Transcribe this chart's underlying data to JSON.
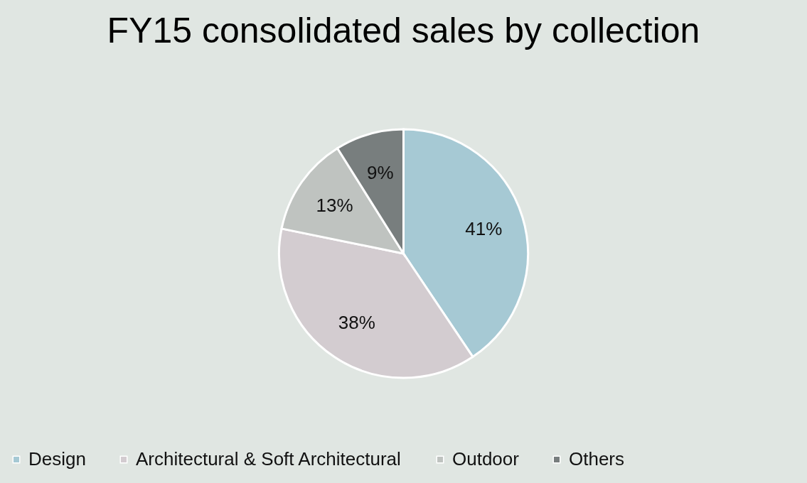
{
  "chart_data": {
    "type": "pie",
    "title": "FY15 consolidated sales by collection",
    "categories": [
      "Design",
      "Architectural & Soft Architectural",
      "Outdoor",
      "Others"
    ],
    "values": [
      41,
      38,
      13,
      9
    ],
    "colors": [
      "#a6c9d4",
      "#d3ccd0",
      "#bfc3c0",
      "#787e7e"
    ],
    "value_labels": [
      "41%",
      "38%",
      "13%",
      "9%"
    ],
    "legend": "bottom"
  }
}
